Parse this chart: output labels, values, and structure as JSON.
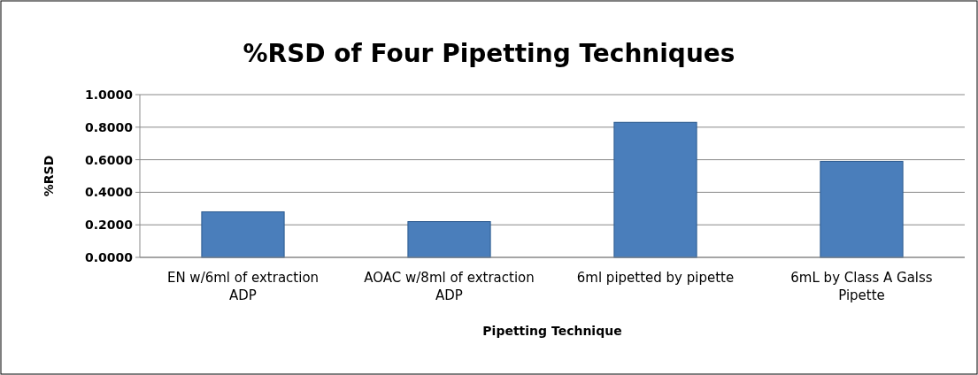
{
  "chart_data": {
    "type": "bar",
    "title": "%RSD of Four Pipetting Techniques",
    "xlabel": "Pipetting Technique",
    "ylabel": "%RSD",
    "categories": [
      "EN w/6ml of extraction ADP",
      "AOAC w/8ml of extraction ADP",
      "6ml pipetted by pipette",
      "6mL by Class A Galss Pipette"
    ],
    "values": [
      0.28,
      0.22,
      0.83,
      0.59
    ],
    "color": "#4a7ebb",
    "ylim": [
      0,
      1
    ],
    "yticks": [
      {
        "value": 0,
        "label": "0.0000"
      },
      {
        "value": 0.2,
        "label": "0.2000"
      },
      {
        "value": 0.4,
        "label": "0.4000"
      },
      {
        "value": 0.6,
        "label": "0.6000"
      },
      {
        "value": 0.8,
        "label": "0.8000"
      },
      {
        "value": 1,
        "label": "1.0000"
      }
    ],
    "grid": "y"
  }
}
